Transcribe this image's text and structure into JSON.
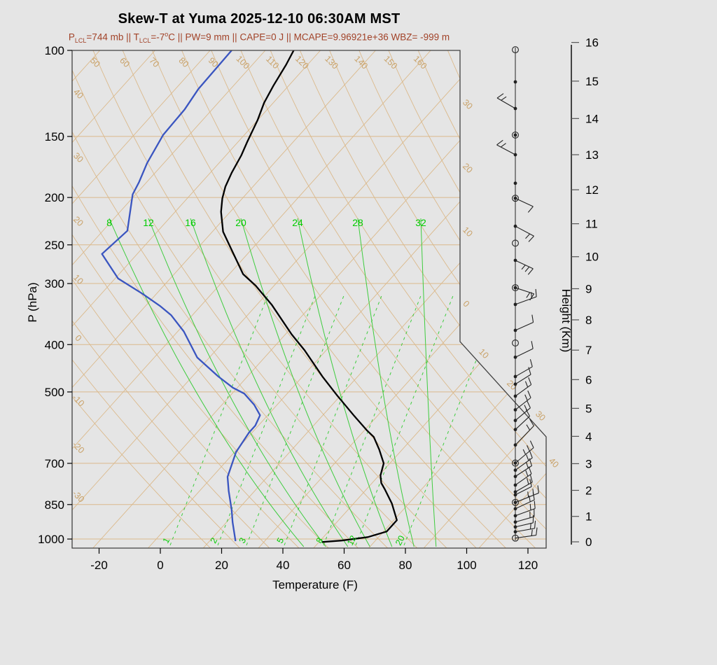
{
  "chart_data": {
    "type": "skewt",
    "title": "Skew-T at Yuma 2025-12-10 06:30AM MST",
    "subtitle_parts": {
      "p": "P",
      "p_sub": "LCL",
      "seg1": "=744 mb || ",
      "t": "T",
      "t_sub": "LCL",
      "seg2": "=-7",
      "deg": "o",
      "seg3": "C || PW=9 mm || CAPE=0 J || MCAPE=9.96921e+36 WBZ= -999 m"
    },
    "x_axis": {
      "label": "Temperature (F)",
      "ticks": [
        -20,
        0,
        20,
        40,
        60,
        80,
        100,
        120
      ]
    },
    "pressure_axis": {
      "label": "P (hPa)",
      "ticks": [
        100,
        150,
        200,
        250,
        300,
        400,
        500,
        700,
        850,
        1000
      ]
    },
    "height_axis": {
      "label": "Height (Km)",
      "ticks": [
        0,
        1,
        2,
        3,
        4,
        5,
        6,
        7,
        8,
        9,
        10,
        11,
        12,
        13,
        14,
        15,
        16
      ]
    },
    "dry_adiabat_labels": {
      "top_f": [
        50,
        60,
        70,
        80,
        90,
        100,
        110,
        120,
        130,
        140,
        150,
        160
      ],
      "left_c": [
        40,
        30,
        20,
        10,
        0,
        -10,
        -20,
        -30
      ]
    },
    "isotherm_labels_c": {
      "right_edge": [
        "30",
        "20",
        "10"
      ],
      "diagonal": [
        "0",
        "10",
        "20",
        "30",
        "40"
      ]
    },
    "moist_adiabat_labels_c": [
      8,
      12,
      16,
      20,
      24,
      28,
      32
    ],
    "mixing_ratio_labels_gkg": [
      1,
      2,
      3,
      5,
      8,
      12,
      20
    ],
    "temperature_profile": [
      [
        99,
        -103
      ],
      [
        107,
        -101
      ],
      [
        118,
        -99
      ],
      [
        128,
        -97
      ],
      [
        139,
        -94
      ],
      [
        154,
        -91
      ],
      [
        164,
        -89
      ],
      [
        178,
        -87
      ],
      [
        190,
        -85
      ],
      [
        201,
        -82.5
      ],
      [
        214,
        -79
      ],
      [
        235,
        -72.5
      ],
      [
        257,
        -64
      ],
      [
        287,
        -53.5
      ],
      [
        303,
        -46
      ],
      [
        332,
        -35
      ],
      [
        381,
        -20
      ],
      [
        411,
        -11
      ],
      [
        465,
        2.5
      ],
      [
        509,
        13
      ],
      [
        560,
        24.5
      ],
      [
        600,
        33
      ],
      [
        618,
        37
      ],
      [
        656,
        42.5
      ],
      [
        700,
        48
      ],
      [
        741,
        50.5
      ],
      [
        768,
        53
      ],
      [
        791,
        56
      ],
      [
        846,
        62.5
      ],
      [
        915,
        69
      ],
      [
        965,
        69
      ],
      [
        991,
        64.5
      ],
      [
        1007,
        57
      ],
      [
        1014,
        51
      ]
    ],
    "dewpoint_profile": [
      [
        100,
        -123
      ],
      [
        120,
        -122.5
      ],
      [
        132,
        -121
      ],
      [
        149,
        -120.5
      ],
      [
        170,
        -117.5
      ],
      [
        186,
        -114.5
      ],
      [
        197,
        -113
      ],
      [
        234,
        -104
      ],
      [
        261,
        -105.5
      ],
      [
        293,
        -93
      ],
      [
        315,
        -80.5
      ],
      [
        334,
        -71
      ],
      [
        348,
        -65
      ],
      [
        376,
        -56
      ],
      [
        425,
        -44
      ],
      [
        465,
        -31.5
      ],
      [
        490,
        -23.5
      ],
      [
        504,
        -18
      ],
      [
        531,
        -11.5
      ],
      [
        558,
        -6.5
      ],
      [
        586,
        -5
      ],
      [
        606,
        -5
      ],
      [
        664,
        -3.5
      ],
      [
        746,
        1
      ],
      [
        797,
        5.5
      ],
      [
        871,
        12
      ],
      [
        924,
        16
      ],
      [
        1010,
        22.5
      ]
    ],
    "wind_barbs": [
      {
        "p": 99.7,
        "sym": "circle"
      },
      {
        "p": 116,
        "sym": "dot"
      },
      {
        "p": 131.5,
        "sym": "dot",
        "dir": 150,
        "ticks": 2,
        "len": 30
      },
      {
        "p": 149,
        "sym": "circledot"
      },
      {
        "p": 163.5,
        "sym": "dot",
        "dir": 152,
        "ticks": 2,
        "len": 30
      },
      {
        "p": 187,
        "sym": "dot"
      },
      {
        "p": 200.7,
        "sym": "circledot",
        "dir": -25,
        "ticks": 1,
        "len": 28
      },
      {
        "p": 229,
        "sym": "dot",
        "dir": -28,
        "ticks": 2,
        "len": 30
      },
      {
        "p": 248,
        "sym": "circle"
      },
      {
        "p": 269,
        "sym": "dot",
        "dir": -25,
        "ticks": 3,
        "len": 28
      },
      {
        "p": 306,
        "sym": "circledot",
        "dir": -18,
        "ticks": 2,
        "len": 28
      },
      {
        "p": 331,
        "sym": "dot",
        "dir": 20,
        "ticks": 2,
        "len": 32
      },
      {
        "p": 374,
        "sym": "dot",
        "dir": 24,
        "ticks": 1,
        "len": 28
      },
      {
        "p": 397,
        "sym": "circle"
      },
      {
        "p": 424.6,
        "sym": "dot",
        "dir": 26,
        "ticks": 1,
        "len": 28
      },
      {
        "p": 465,
        "sym": "dot",
        "dir": 30,
        "ticks": 1,
        "len": 28
      },
      {
        "p": 482,
        "sym": "dot",
        "dir": 32,
        "ticks": 1,
        "len": 26
      },
      {
        "p": 510,
        "sym": "dot",
        "dir": 36,
        "ticks": 2,
        "len": 28
      },
      {
        "p": 544,
        "sym": "dot",
        "dir": 38,
        "ticks": 2,
        "len": 28
      },
      {
        "p": 572,
        "sym": "dot",
        "dir": 40,
        "ticks": 2,
        "len": 28
      },
      {
        "p": 597,
        "sym": "dot",
        "dir": 43,
        "ticks": 1,
        "len": 28
      },
      {
        "p": 642,
        "sym": "dot",
        "dir": 46,
        "ticks": 2,
        "len": 38
      },
      {
        "p": 699,
        "sym": "circledot",
        "dir": 40,
        "ticks": 3,
        "len": 34
      },
      {
        "p": 723,
        "sym": "dot",
        "dir": 36,
        "ticks": 2,
        "len": 30
      },
      {
        "p": 744.6,
        "sym": "dot",
        "dir": 33,
        "ticks": 2,
        "len": 28
      },
      {
        "p": 775.5,
        "sym": "dot",
        "dir": 35,
        "ticks": 2,
        "len": 28
      },
      {
        "p": 801,
        "sym": "dot",
        "dir": 30,
        "ticks": 2,
        "len": 28
      },
      {
        "p": 812,
        "sym": "dot",
        "dir": 27,
        "ticks": 1,
        "len": 26
      },
      {
        "p": 841.7,
        "sym": "circledot",
        "dir": 22,
        "ticks": 3,
        "len": 36
      },
      {
        "p": 867,
        "sym": "dot",
        "dir": 25,
        "ticks": 2,
        "len": 30
      },
      {
        "p": 896,
        "sym": "dot",
        "dir": 20,
        "ticks": 2,
        "len": 30
      },
      {
        "p": 923,
        "sym": "dot",
        "dir": 16,
        "ticks": 2,
        "len": 28
      },
      {
        "p": 944.6,
        "sym": "dot",
        "dir": 13,
        "ticks": 1,
        "len": 26
      },
      {
        "p": 966.6,
        "sym": "dot",
        "dir": 10,
        "ticks": 2,
        "len": 28
      },
      {
        "p": 995.6,
        "sym": "circle",
        "dir": 8,
        "ticks": 2,
        "len": 30
      }
    ],
    "colors": {
      "temperature": "#000000",
      "dewpoint": "#3A55C0",
      "grid": "#DBB98B",
      "grid_label": "#C9A269",
      "moist_line": "#3ECC3E",
      "green_label": "#00CC00",
      "subtitle": "#A14228",
      "boundary": "#404040",
      "barb": "#222222",
      "background": "#E5E5E5"
    }
  }
}
